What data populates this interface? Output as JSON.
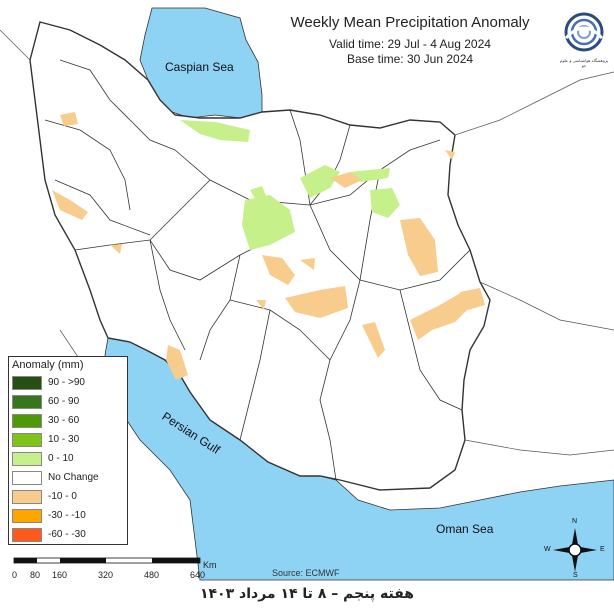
{
  "title": "Weekly Mean Precipitation Anomaly",
  "valid_time": "Valid time: 29 Jul - 4 Aug 2024",
  "base_time": "Base time: 30 Jun 2024",
  "logo_text": "پژوهشگاه هواشناسی و علوم جو",
  "legend": {
    "title": "Anomaly (mm)",
    "items": [
      {
        "label": "90 - >90",
        "color": "#274e13"
      },
      {
        "label": "60 - 90",
        "color": "#38761d"
      },
      {
        "label": "30 - 60",
        "color": "#4e9a06"
      },
      {
        "label": "10 - 30",
        "color": "#7fc31c"
      },
      {
        "label": "0 - 10",
        "color": "#c6f08a"
      },
      {
        "label": "No Change",
        "color": "#ffffff"
      },
      {
        "label": "-10 - 0",
        "color": "#f8cc8c"
      },
      {
        "label": "-30 - -10",
        "color": "#ffa500"
      },
      {
        "label": "-60 - -30",
        "color": "#ff5a1a"
      }
    ]
  },
  "scale_bar": {
    "unit": "Km",
    "labels": [
      "0",
      "80",
      "160",
      "320",
      "480",
      "640"
    ]
  },
  "source": "Source: ECMWF",
  "places": {
    "caspian": "Caspian Sea",
    "persian_gulf": "Persian Gulf",
    "oman_sea": "Oman Sea"
  },
  "compass": {
    "n": "N",
    "s": "S",
    "e": "E",
    "w": "W"
  },
  "footer": "هفته پنجم – ۸ تا ۱۴ مرداد ۱۴۰۳",
  "colors": {
    "water": "#8fd3f4",
    "land": "#ffffff",
    "border": "#333333"
  }
}
